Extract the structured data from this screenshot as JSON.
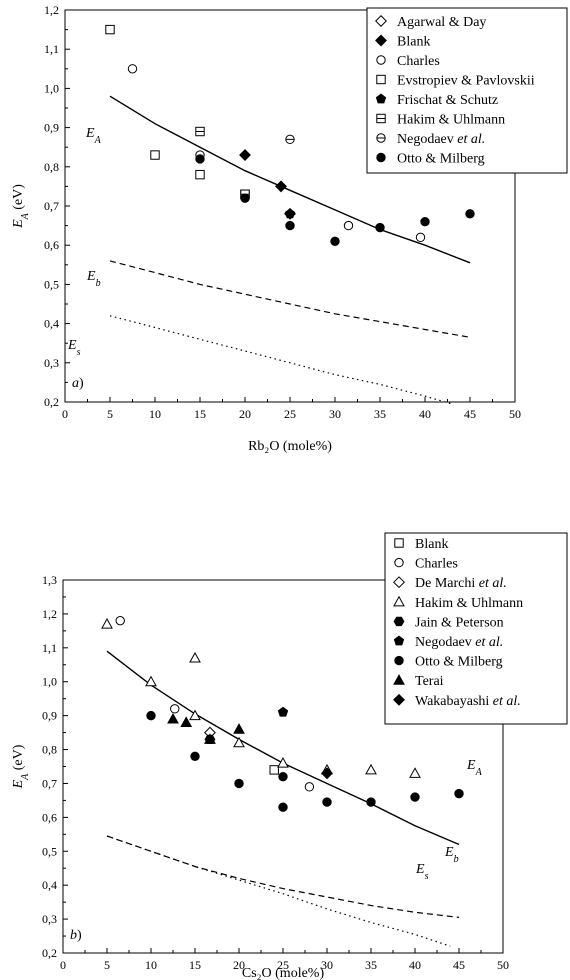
{
  "chart_data": [
    {
      "type": "scatter",
      "panel_label": "a)",
      "xlabel": "Rb₂O (mole%)",
      "ylabel": "E_A (eV)",
      "xlim": [
        0,
        50
      ],
      "ylim": [
        0.2,
        1.2
      ],
      "xticks": [
        0,
        5,
        10,
        15,
        20,
        25,
        30,
        35,
        40,
        45,
        50
      ],
      "yticks": [
        0.2,
        0.3,
        0.4,
        0.5,
        0.6,
        0.7,
        0.8,
        0.9,
        1.0,
        1.1,
        1.2
      ],
      "legend_position": "top-right",
      "series": [
        {
          "name": "Agarwal & Day",
          "marker": "diamond-open",
          "points": [
            [
              25,
              0.68
            ]
          ]
        },
        {
          "name": "Blank",
          "marker": "diamond-filled",
          "points": [
            [
              20,
              0.83
            ],
            [
              24,
              0.75
            ]
          ]
        },
        {
          "name": "Charles",
          "marker": "circle-open",
          "points": [
            [
              7.5,
              1.05
            ],
            [
              15,
              0.83
            ],
            [
              31.5,
              0.65
            ],
            [
              39.5,
              0.62
            ]
          ]
        },
        {
          "name": "Evstropiev & Pavlovskii",
          "marker": "square-open",
          "points": [
            [
              5,
              1.15
            ],
            [
              10,
              0.83
            ],
            [
              15,
              0.78
            ],
            [
              20,
              0.73
            ]
          ]
        },
        {
          "name": "Frischat & Schutz",
          "marker": "pentagon-filled",
          "points": [
            [
              25,
              0.68
            ]
          ]
        },
        {
          "name": "Hakim & Uhlmann",
          "marker": "square-halfline",
          "points": [
            [
              15,
              0.89
            ],
            [
              20,
              0.73
            ]
          ]
        },
        {
          "name": "Negodaev et al.",
          "marker": "circle-halfline",
          "points": [
            [
              25,
              0.87
            ]
          ]
        },
        {
          "name": "Otto & Milberg",
          "marker": "circle-filled",
          "points": [
            [
              15,
              0.82
            ],
            [
              20,
              0.72
            ],
            [
              25,
              0.65
            ],
            [
              30,
              0.61
            ],
            [
              35,
              0.645
            ],
            [
              40,
              0.66
            ],
            [
              45,
              0.68
            ]
          ]
        }
      ],
      "curves": [
        {
          "label": "E_A",
          "style": "solid",
          "points": [
            [
              5,
              0.98
            ],
            [
              10,
              0.91
            ],
            [
              15,
              0.85
            ],
            [
              20,
              0.79
            ],
            [
              25,
              0.74
            ],
            [
              30,
              0.69
            ],
            [
              35,
              0.64
            ],
            [
              40,
              0.6
            ],
            [
              45,
              0.555
            ]
          ]
        },
        {
          "label": "E_b",
          "style": "dashed",
          "points": [
            [
              5,
              0.56
            ],
            [
              10,
              0.53
            ],
            [
              15,
              0.5
            ],
            [
              20,
              0.475
            ],
            [
              25,
              0.45
            ],
            [
              30,
              0.425
            ],
            [
              35,
              0.405
            ],
            [
              40,
              0.385
            ],
            [
              45,
              0.365
            ]
          ]
        },
        {
          "label": "E_s",
          "style": "dotted",
          "points": [
            [
              5,
              0.42
            ],
            [
              10,
              0.39
            ],
            [
              15,
              0.36
            ],
            [
              20,
              0.33
            ],
            [
              25,
              0.3
            ],
            [
              30,
              0.27
            ],
            [
              35,
              0.245
            ],
            [
              40,
              0.215
            ],
            [
              43,
              0.195
            ]
          ]
        }
      ]
    },
    {
      "type": "scatter",
      "panel_label": "b)",
      "xlabel": "Cs₂O (mole%)",
      "ylabel": "E_A (eV)",
      "xlim": [
        0,
        50
      ],
      "ylim": [
        0.2,
        1.3
      ],
      "xticks": [
        0,
        5,
        10,
        15,
        20,
        25,
        30,
        35,
        40,
        45,
        50
      ],
      "yticks": [
        0.2,
        0.3,
        0.4,
        0.5,
        0.6,
        0.7,
        0.8,
        0.9,
        1.0,
        1.1,
        1.2,
        1.3
      ],
      "legend_position": "top-right",
      "series": [
        {
          "name": "Blank",
          "marker": "square-open",
          "points": [
            [
              24,
              0.74
            ]
          ]
        },
        {
          "name": "Charles",
          "marker": "circle-open",
          "points": [
            [
              6.5,
              1.18
            ],
            [
              12.7,
              0.92
            ],
            [
              28,
              0.69
            ]
          ]
        },
        {
          "name": "De Marchi et al.",
          "marker": "diamond-open",
          "points": [
            [
              16.7,
              0.85
            ]
          ]
        },
        {
          "name": "Hakim & Uhlmann",
          "marker": "triangle-open",
          "points": [
            [
              5,
              1.17
            ],
            [
              10,
              1.0
            ],
            [
              15,
              1.07
            ],
            [
              15,
              0.9
            ],
            [
              20,
              0.82
            ],
            [
              25,
              0.76
            ],
            [
              30,
              0.74
            ],
            [
              35,
              0.74
            ],
            [
              40,
              0.73
            ]
          ]
        },
        {
          "name": "Jain & Peterson",
          "marker": "hexagon-filled",
          "points": [
            [
              16.7,
              0.83
            ]
          ]
        },
        {
          "name": "Negodaev et al.",
          "marker": "pentagon-filled",
          "points": [
            [
              25,
              0.91
            ]
          ]
        },
        {
          "name": "Otto & Milberg",
          "marker": "circle-filled",
          "points": [
            [
              10,
              0.9
            ],
            [
              15,
              0.78
            ],
            [
              20,
              0.7
            ],
            [
              25,
              0.72
            ],
            [
              25,
              0.63
            ],
            [
              30,
              0.645
            ],
            [
              35,
              0.645
            ],
            [
              40,
              0.66
            ],
            [
              45,
              0.67
            ]
          ]
        },
        {
          "name": "Terai",
          "marker": "triangle-filled",
          "points": [
            [
              12.5,
              0.89
            ],
            [
              14,
              0.88
            ],
            [
              16.7,
              0.83
            ],
            [
              20,
              0.86
            ]
          ]
        },
        {
          "name": "Wakabayashi et al.",
          "marker": "diamond-filled",
          "points": [
            [
              30,
              0.73
            ]
          ]
        }
      ],
      "curves": [
        {
          "label": "E_A",
          "style": "solid",
          "points": [
            [
              5,
              1.09
            ],
            [
              10,
              0.99
            ],
            [
              15,
              0.905
            ],
            [
              20,
              0.83
            ],
            [
              25,
              0.76
            ],
            [
              30,
              0.7
            ],
            [
              35,
              0.64
            ],
            [
              40,
              0.575
            ],
            [
              45,
              0.52
            ]
          ]
        },
        {
          "label": "E_b",
          "style": "dashed",
          "points": [
            [
              5,
              0.545
            ],
            [
              10,
              0.5
            ],
            [
              15,
              0.455
            ],
            [
              20,
              0.42
            ],
            [
              25,
              0.39
            ],
            [
              30,
              0.365
            ],
            [
              35,
              0.34
            ],
            [
              40,
              0.32
            ],
            [
              45,
              0.305
            ]
          ]
        },
        {
          "label": "E_s",
          "style": "dotted",
          "points": [
            [
              5,
              0.545
            ],
            [
              10,
              0.5
            ],
            [
              15,
              0.455
            ],
            [
              20,
              0.415
            ],
            [
              25,
              0.375
            ],
            [
              30,
              0.33
            ],
            [
              35,
              0.29
            ],
            [
              40,
              0.255
            ],
            [
              44,
              0.22
            ]
          ]
        }
      ]
    }
  ]
}
